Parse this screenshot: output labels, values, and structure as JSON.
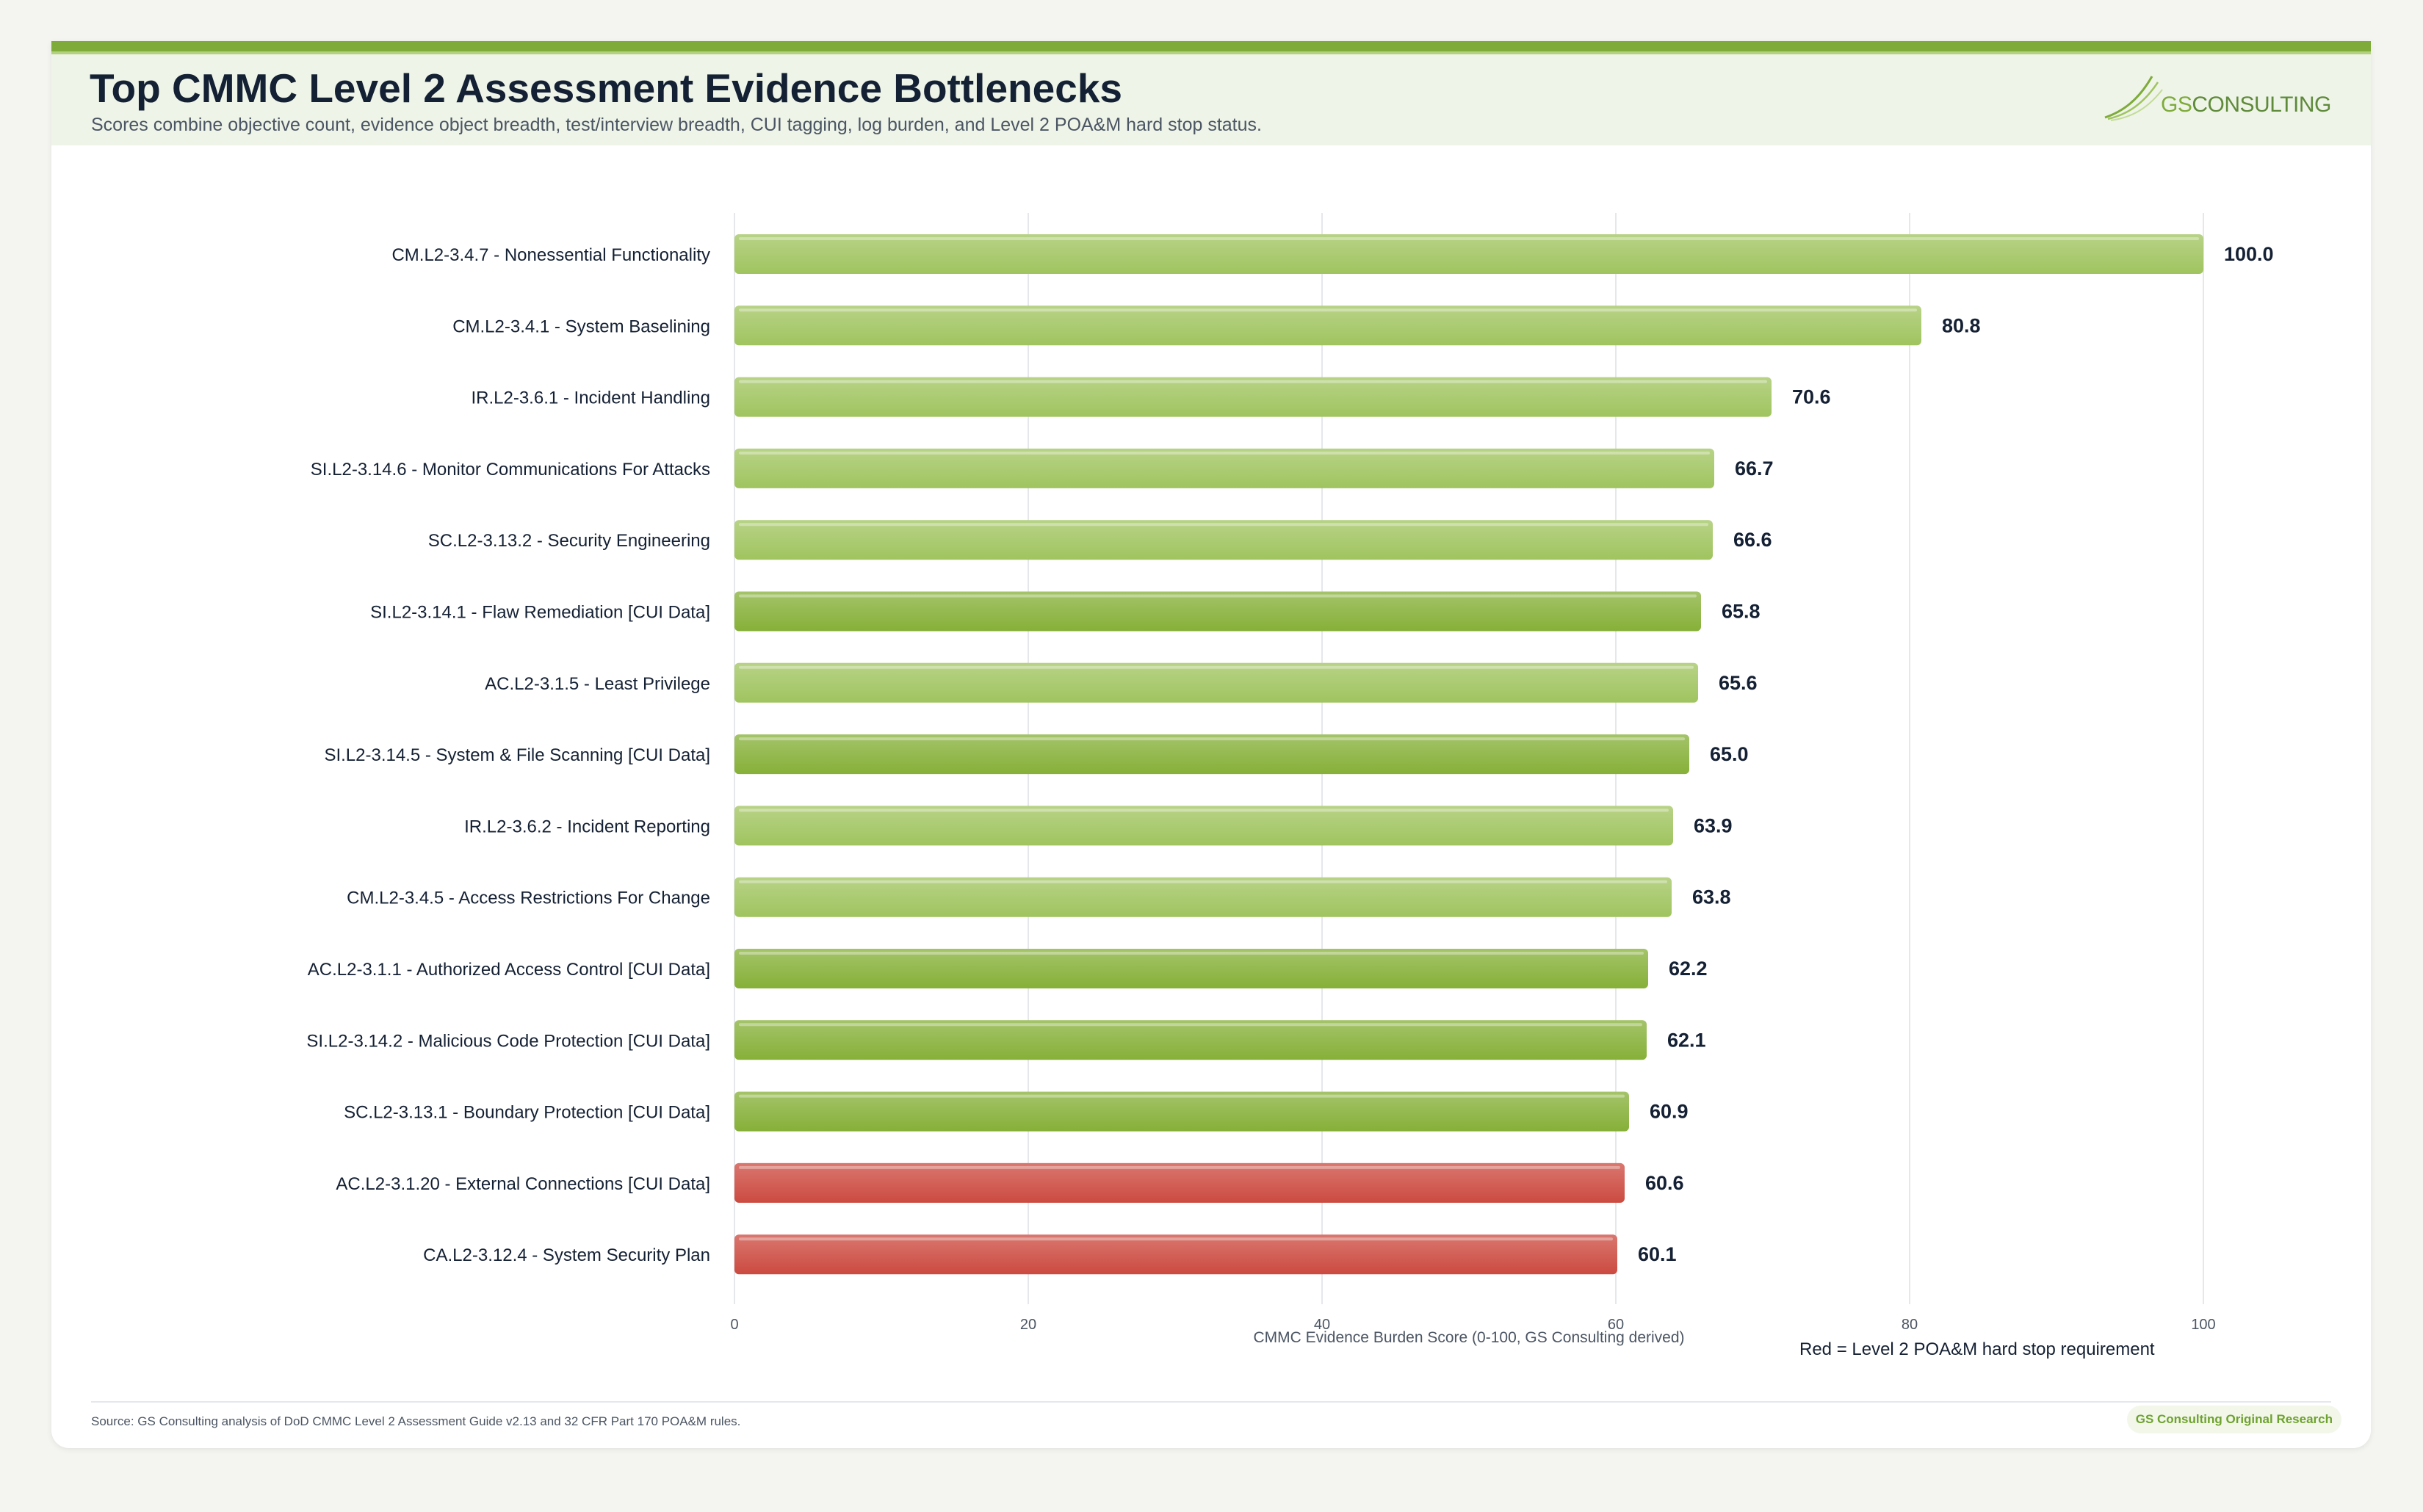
{
  "header": {
    "title": "Top CMMC Level 2 Assessment Evidence Bottlenecks",
    "subtitle": "Scores combine objective count, evidence object breadth, test/interview breadth, CUI tagging, log burden, and Level 2 POA&M hard stop status."
  },
  "logo": {
    "gs": "GS",
    "rest": "CONSULTING"
  },
  "footer": {
    "source": "Source: GS Consulting analysis of DoD CMMC Level 2 Assessment Guide v2.13 and 32 CFR Part 170 POA&M rules.",
    "badge": "GS Consulting Original Research"
  },
  "legend_note": "Red = Level 2 POA&M hard stop requirement",
  "colors": {
    "standard": "#a0c45f",
    "cui": "#86b038",
    "hard_stop": "#cc4a40",
    "accent": "#7eab39",
    "text": "#142033"
  },
  "chart_data": {
    "type": "bar",
    "orientation": "horizontal",
    "xlabel": "CMMC Evidence Burden Score (0-100, GS Consulting derived)",
    "xlim": [
      0,
      100
    ],
    "xticks": [
      0,
      20,
      40,
      60,
      80,
      100
    ],
    "grid": true,
    "categories": [
      "CM.L2-3.4.7 - Nonessential Functionality",
      "CM.L2-3.4.1 - System Baselining",
      "IR.L2-3.6.1 - Incident Handling",
      "SI.L2-3.14.6 - Monitor Communications For Attacks",
      "SC.L2-3.13.2 - Security Engineering",
      "SI.L2-3.14.1 - Flaw Remediation [CUI Data]",
      "AC.L2-3.1.5 - Least Privilege",
      "SI.L2-3.14.5 - System & File Scanning [CUI Data]",
      "IR.L2-3.6.2 - Incident Reporting",
      "CM.L2-3.4.5 - Access Restrictions For Change",
      "AC.L2-3.1.1 - Authorized Access Control [CUI Data]",
      "SI.L2-3.14.2 - Malicious Code Protection [CUI Data]",
      "SC.L2-3.13.1 - Boundary Protection [CUI Data]",
      "AC.L2-3.1.20 - External Connections [CUI Data]",
      "CA.L2-3.12.4 - System Security Plan"
    ],
    "values": [
      100.0,
      80.8,
      70.6,
      66.7,
      66.6,
      65.8,
      65.6,
      65.0,
      63.9,
      63.8,
      62.2,
      62.1,
      60.9,
      60.6,
      60.1
    ],
    "value_labels": [
      "100.0",
      "80.8",
      "70.6",
      "66.7",
      "66.6",
      "65.8",
      "65.6",
      "65.0",
      "63.9",
      "63.8",
      "62.2",
      "62.1",
      "60.9",
      "60.6",
      "60.1"
    ],
    "bar_class": [
      "standard",
      "standard",
      "standard",
      "standard",
      "standard",
      "cui",
      "standard",
      "cui",
      "standard",
      "standard",
      "cui",
      "cui",
      "cui",
      "hard_stop",
      "hard_stop"
    ]
  }
}
